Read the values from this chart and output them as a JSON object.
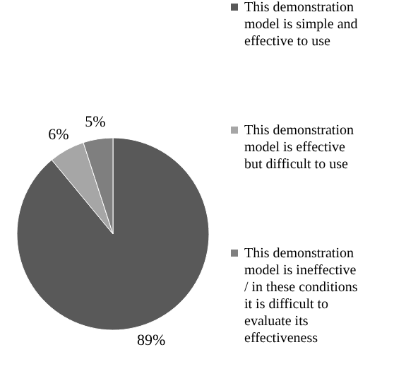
{
  "chart_data": {
    "type": "pie",
    "categories": [
      "This demonstration model is simple and effective to use",
      "This demonstration model is effective but difficult to use",
      "This demonstration model is ineffective / in these conditions it is difficult to evaluate its effectiveness"
    ],
    "values": [
      89,
      6,
      5
    ],
    "colors": [
      "#595959",
      "#a6a6a6",
      "#7f7f7f"
    ],
    "value_labels": [
      "89%",
      "6%",
      "5%"
    ],
    "legend": "right"
  }
}
